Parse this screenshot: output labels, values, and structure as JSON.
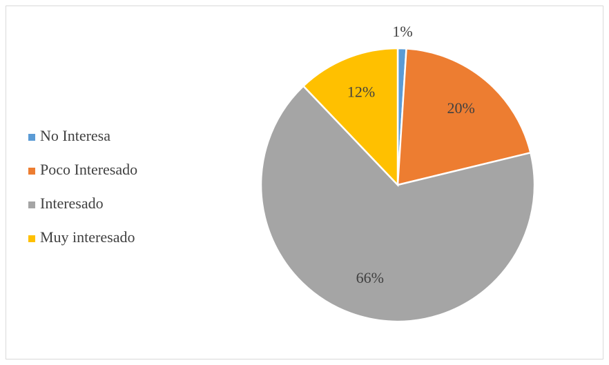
{
  "chart_data": {
    "type": "pie",
    "categories": [
      "No Interesa",
      "Poco Interesado",
      "Interesado",
      "Muy interesado"
    ],
    "values": [
      1,
      20,
      66,
      12
    ],
    "value_labels": [
      "1%",
      "20%",
      "66%",
      "12%"
    ],
    "colors": [
      "#5b9bd5",
      "#ed7d31",
      "#a5a5a5",
      "#ffc000"
    ],
    "legend": "left"
  }
}
